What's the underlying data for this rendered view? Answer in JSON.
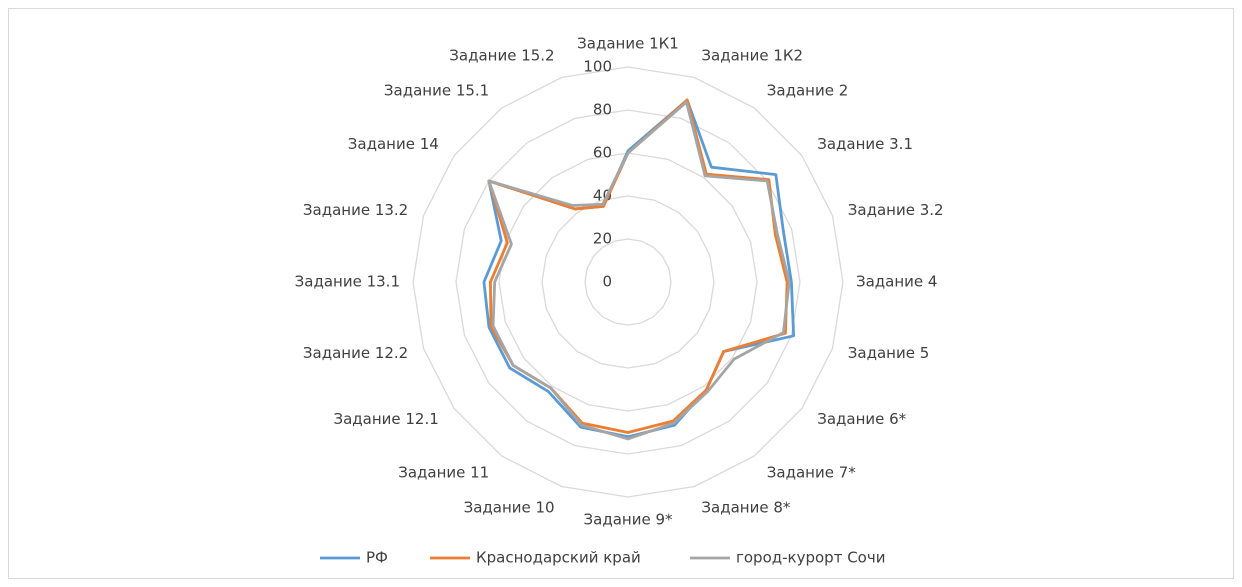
{
  "chart_data": {
    "type": "radar",
    "categories": [
      "Задание 1К1",
      "Задание 1К2",
      "Задание 2",
      "Задание 3.1",
      "Задание 3.2",
      "Задание 4",
      "Задание 5",
      "Задание 6*",
      "Задание 7*",
      "Задание 8*",
      "Задание 9*",
      "Задание 10",
      "Задание 11",
      "Задание 12.1",
      "Задание 12.2",
      "Задание 13.1",
      "Задание 13.2",
      "Задание 14",
      "Задание 15.1",
      "Задание 15.2"
    ],
    "series": [
      {
        "name": "РФ",
        "color": "#5b9bd5",
        "values": [
          61,
          89,
          66,
          85,
          76,
          76,
          81,
          55,
          62,
          70,
          72,
          71,
          63,
          68,
          68,
          67,
          62,
          80,
          42,
          37
        ]
      },
      {
        "name": "Краснодарский край",
        "color": "#ed7d31",
        "values": [
          60,
          89,
          62,
          81,
          72,
          74,
          77,
          55,
          62,
          68,
          70,
          69,
          61,
          66,
          67,
          64,
          59,
          80,
          42,
          37
        ]
      },
      {
        "name": "город-курорт Сочи",
        "color": "#a5a5a5",
        "values": [
          60,
          88,
          61,
          80,
          73,
          75,
          76,
          61,
          63,
          69,
          73,
          70,
          61,
          66,
          66,
          62,
          57,
          80,
          44,
          38
        ]
      }
    ],
    "ylim": [
      0,
      100
    ],
    "yticks": [
      0,
      20,
      40,
      60,
      80,
      100
    ],
    "grid": true,
    "legend": "bottom"
  }
}
